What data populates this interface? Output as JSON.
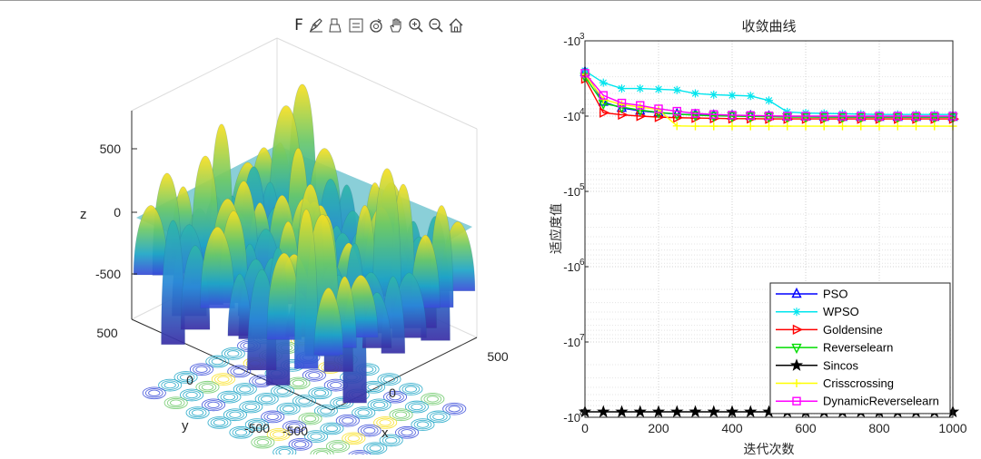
{
  "toolbar": {
    "items": [
      {
        "icon": "data-tips-icon",
        "glyph": "F"
      },
      {
        "icon": "brush-icon"
      },
      {
        "icon": "clear-icon"
      },
      {
        "icon": "legend-icon"
      },
      {
        "icon": "rotate-3d-icon"
      },
      {
        "icon": "pan-hand-icon"
      },
      {
        "icon": "zoom-in-icon"
      },
      {
        "icon": "zoom-out-icon"
      },
      {
        "icon": "home-icon"
      }
    ]
  },
  "surface_plot": {
    "type": "3d-surface",
    "xlabel": "x",
    "ylabel": "y",
    "zlabel": "z",
    "x_ticks": [
      "-500",
      "0",
      "500"
    ],
    "y_ticks": [
      "-500",
      "0",
      "500"
    ],
    "z_ticks": [
      "500",
      "0",
      "-500"
    ],
    "xlim": [
      -500,
      500
    ],
    "ylim": [
      -500,
      500
    ],
    "zlim": [
      -800,
      800
    ],
    "colormap": "parula",
    "contour_base": true
  },
  "chart_data": {
    "type": "line",
    "title": "收敛曲线",
    "xlabel": "迭代次数",
    "ylabel": "适应度值",
    "xlim": [
      0,
      1000
    ],
    "x_ticks": [
      "0",
      "200",
      "400",
      "600",
      "800",
      "1000"
    ],
    "y_scale": "negative-log",
    "ylim": [
      -100000000.0,
      -1000.0
    ],
    "y_ticks": [
      "-10",
      "-10",
      "-10",
      "-10",
      "-10",
      "-10"
    ],
    "y_tick_exponents": [
      "3",
      "4",
      "5",
      "6",
      "7",
      "8"
    ],
    "grid": true,
    "legend_position": "bottom-right",
    "x": [
      0,
      50,
      100,
      150,
      200,
      250,
      300,
      350,
      400,
      450,
      500,
      550,
      600,
      650,
      700,
      750,
      800,
      850,
      900,
      950,
      1000
    ],
    "series": [
      {
        "name": "PSO",
        "color": "#0000ff",
        "marker": "triangle-up",
        "values": [
          -2600,
          -6500,
          -7800,
          -8500,
          -9000,
          -9400,
          -9600,
          -9800,
          -9900,
          -10000,
          -10100,
          -10200,
          -10200,
          -10300,
          -10300,
          -10300,
          -10300,
          -10300,
          -10300,
          -10300,
          -10300
        ]
      },
      {
        "name": "WPSO",
        "color": "#00e5ee",
        "marker": "asterisk",
        "values": [
          -2500,
          -3600,
          -4300,
          -4300,
          -4400,
          -4500,
          -5000,
          -5200,
          -5300,
          -5400,
          -6200,
          -8800,
          -9100,
          -9200,
          -9300,
          -9400,
          -9500,
          -9500,
          -9500,
          -9500,
          -9500
        ]
      },
      {
        "name": "Goldensine",
        "color": "#ff0000",
        "marker": "triangle-right",
        "values": [
          -3200,
          -9000,
          -9600,
          -10000,
          -10300,
          -10500,
          -10600,
          -10700,
          -10800,
          -10800,
          -10900,
          -10900,
          -10900,
          -10900,
          -10900,
          -10900,
          -10900,
          -10900,
          -10900,
          -10900,
          -10900
        ]
      },
      {
        "name": "Reverselearn",
        "color": "#00dd00",
        "marker": "triangle-down",
        "values": [
          -3000,
          -6800,
          -7600,
          -8300,
          -8900,
          -9400,
          -9700,
          -9900,
          -10000,
          -10100,
          -10200,
          -10300,
          -10300,
          -10300,
          -10300,
          -10300,
          -10300,
          -10300,
          -10300,
          -10300,
          -10300
        ]
      },
      {
        "name": "Sincos",
        "color": "#000000",
        "marker": "star",
        "values": [
          -100000000,
          -100000000,
          -100000000,
          -100000000,
          -100000000,
          -100000000,
          -100000000,
          -100000000,
          -100000000,
          -100000000,
          -100000000,
          -100000000,
          -100000000,
          -100000000,
          -100000000,
          -100000000,
          -100000000,
          -100000000,
          -100000000,
          -100000000,
          -100000000
        ]
      },
      {
        "name": "Crisscrossing",
        "color": "#ffff00",
        "marker": "plus",
        "values": [
          -2800,
          -6000,
          -7000,
          -7600,
          -8200,
          -13500,
          -13600,
          -13600,
          -13600,
          -13600,
          -13600,
          -13600,
          -13600,
          -13600,
          -13600,
          -13600,
          -13600,
          -13600,
          -13600,
          -13600,
          -13600
        ]
      },
      {
        "name": "DynamicReverselearn",
        "color": "#ff00ff",
        "marker": "square",
        "values": [
          -2700,
          -5300,
          -6700,
          -7200,
          -8000,
          -8600,
          -9200,
          -9500,
          -9700,
          -9800,
          -9900,
          -10000,
          -10000,
          -10000,
          -10000,
          -10000,
          -10000,
          -10000,
          -10000,
          -10000,
          -10000
        ]
      }
    ]
  }
}
